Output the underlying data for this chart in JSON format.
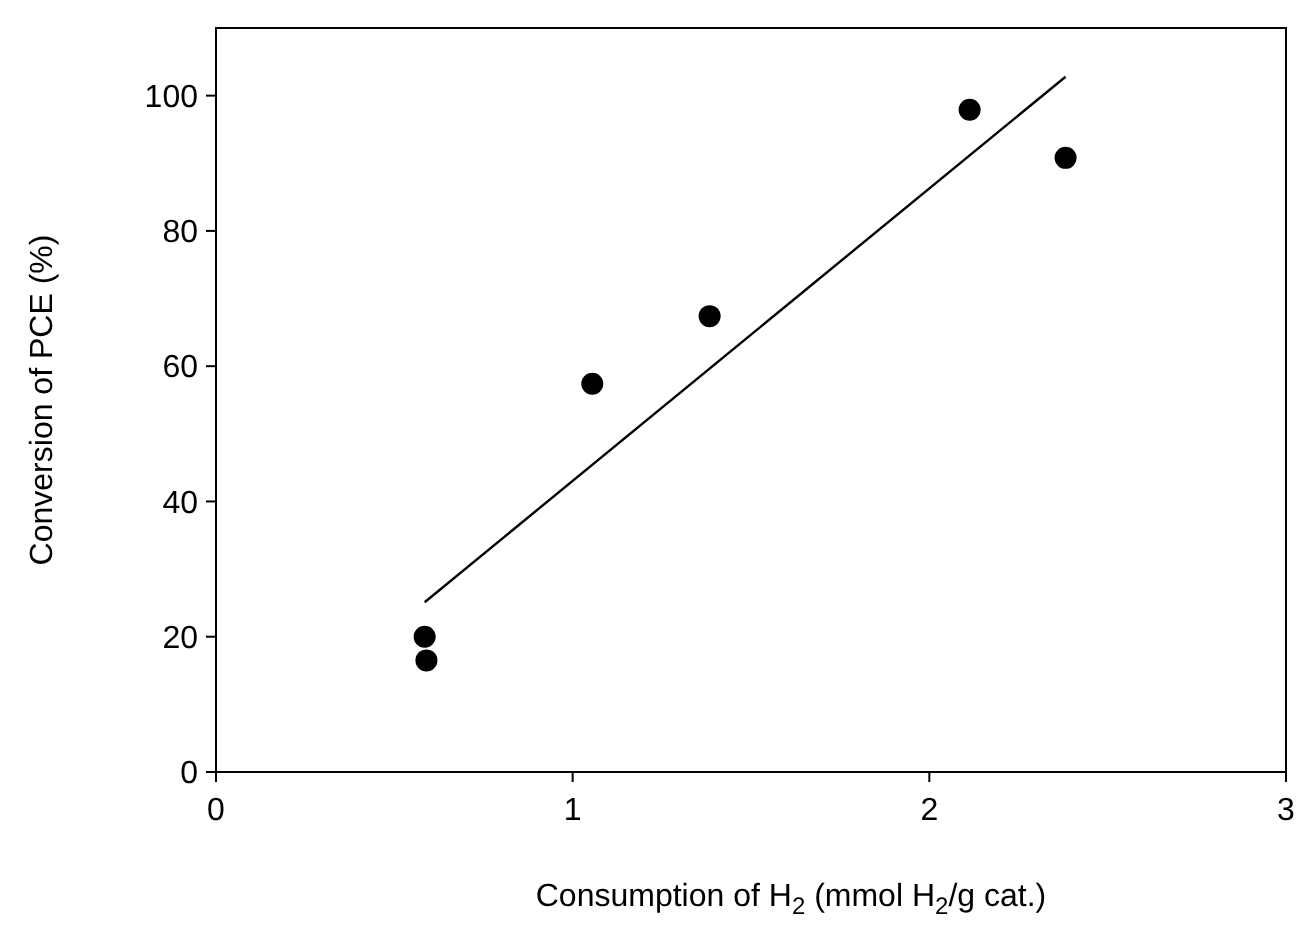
{
  "chart_data": {
    "type": "scatter",
    "xlabel": "Consumption of H$_{2}$ (mmol H$_{2}$/g cat.)",
    "ylabel": "Conversion of PCE (%)",
    "xlim": [
      0,
      3
    ],
    "xticks": [
      0,
      1,
      2,
      3
    ],
    "ylim": [
      0,
      110
    ],
    "yticks": [
      0,
      20,
      40,
      60,
      80,
      100
    ],
    "grid": false,
    "series": [
      {
        "color": "#000000",
        "marker": "circle",
        "x": [
          0.585,
          0.59,
          1.055,
          1.384,
          2.113,
          2.382
        ],
        "values": [
          20,
          16.5,
          57.4,
          67.4,
          97.9,
          90.8
        ]
      },
      {
        "type": "line",
        "color": "#000000",
        "line_style": "solid",
        "x": [
          0.585,
          2.382
        ],
        "values": [
          25.1,
          102.8
        ]
      }
    ]
  }
}
